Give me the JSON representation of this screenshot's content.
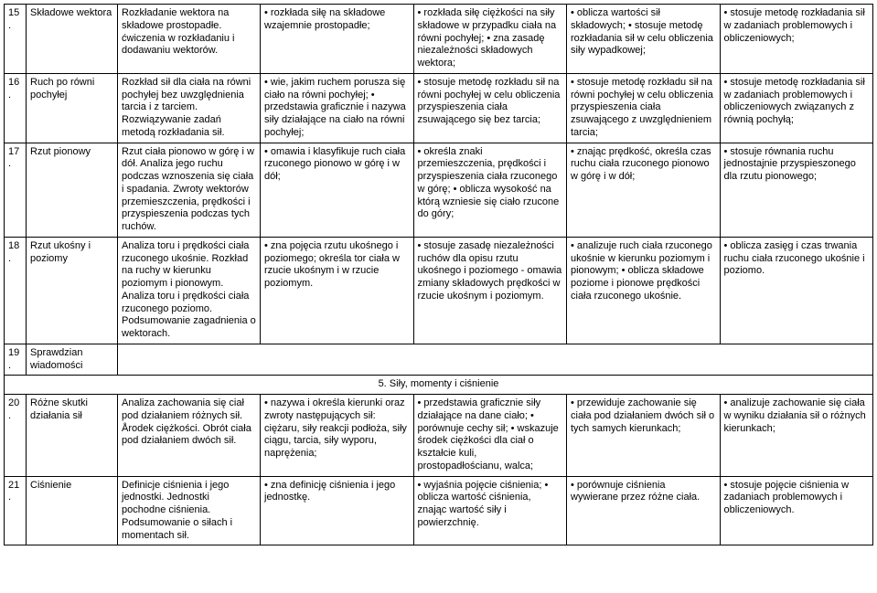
{
  "rows": [
    {
      "num": "15.",
      "topic": "Składowe wektora",
      "col3": "Rozkładanie wektora na składowe prostopadłe. ćwiczenia w rozkładaniu i dodawaniu wektorów.",
      "col4": "• rozkłada siłę na składowe wzajemnie prostopadłe;",
      "col5": "• rozkłada siłę ciężkości na siły składowe w przypadku ciała na równi pochyłej; • zna zasadę niezależności składowych wektora;",
      "col6": "• oblicza wartości sił składowych; • stosuje metodę rozkładania sił w celu obliczenia siły wypadkowej;",
      "col7": "• stosuje metodę rozkładania sił w zadaniach problemowych i obliczeniowych;"
    },
    {
      "num": "16.",
      "topic": "Ruch po równi pochyłej",
      "col3": "Rozkład sił dla ciała na równi pochyłej bez uwzględnienia tarcia i z tarciem. Rozwiązywanie zadań metodą rozkładania sił.",
      "col4": "• wie, jakim ruchem porusza się ciało na równi pochyłej; • przedstawia graficznie i nazywa siły działające na ciało na równi pochyłej;",
      "col5": "• stosuje metodę rozkładu sił na równi pochyłej w celu obliczenia przyspieszenia ciała zsuwającego się bez tarcia;",
      "col6": "• stosuje metodę rozkładu sił na równi pochyłej w celu obliczenia przyspieszenia ciała zsuwającego z uwzględnieniem tarcia;",
      "col7": "• stosuje metodę rozkładania sił w zadaniach problemowych i obliczeniowych związanych z równią pochyłą;"
    },
    {
      "num": "17.",
      "topic": "Rzut pionowy",
      "col3": "Rzut ciała pionowo w górę i w dół. Analiza jego ruchu podczas wznoszenia się ciała i spadania. Zwroty wektorów przemieszczenia, prędkości i przyspieszenia podczas tych ruchów.",
      "col4": "• omawia i klasyfikuje ruch ciała rzuconego pionowo w górę i w dół;",
      "col5": "• określa znaki przemieszczenia, prędkości i przyspieszenia ciała rzuconego w górę; • oblicza wysokość na którą wzniesie się ciało rzucone do góry;",
      "col6": "• znając prędkość, określa czas ruchu ciała rzuconego pionowo w górę i w dół;",
      "col7": "• stosuje równania ruchu jednostajnie przyspieszonego dla rzutu pionowego;"
    },
    {
      "num": "18.",
      "topic": "Rzut ukośny i poziomy",
      "col3": "Analiza toru i prędkości ciała rzuconego ukośnie. Rozkład na ruchy w kierunku poziomym i pionowym. Analiza toru i prędkości ciała rzuconego poziomo. Podsumowanie zagadnienia o wektorach.",
      "col4": "• zna pojęcia rzutu ukośnego i poziomego; określa tor ciała w rzucie ukośnym i w rzucie poziomym.",
      "col5": "• stosuje zasadę niezależności ruchów dla opisu rzutu ukośnego i poziomego - omawia zmiany składowych prędkości w rzucie ukośnym i poziomym.",
      "col6": "• analizuje ruch ciała rzuconego ukośnie w kierunku poziomym i pionowym; • oblicza składowe poziome i pionowe prędkości ciała rzuconego ukośnie.",
      "col7": "• oblicza zasięg i czas trwania ruchu ciała rzuconego ukośnie i poziomo."
    },
    {
      "num": "19.",
      "topic": "Sprawdzian wiadomości",
      "col3": "",
      "col4": "",
      "col5": "",
      "col6": "",
      "col7": ""
    }
  ],
  "section_title": "5. Siły, momenty i ciśnienie",
  "rows2": [
    {
      "num": "20.",
      "topic": "Różne skutki działania sił",
      "col3": "Analiza zachowania się ciał pod działaniem różnych sił. Årodek ciężkości. Obrót ciała pod działaniem dwóch sił.",
      "col4": "• nazywa i określa kierunki oraz zwroty następujących sił: ciężaru, siły reakcji podłoża, siły ciągu, tarcia, siły wyporu, naprężenia;",
      "col5": "• przedstawia graficznie siły działające na dane ciało; • porównuje cechy sił; • wskazuje środek ciężkości dla ciał o kształcie kuli, prostopadłościanu, walca;",
      "col6": "• przewiduje zachowanie się ciała pod działaniem dwóch sił o tych samych kierunkach;",
      "col7": "• analizuje zachowanie się ciała w wyniku działania sił o różnych kierunkach;"
    },
    {
      "num": "21.",
      "topic": "Ciśnienie",
      "col3": "Definicje ciśnienia i jego jednostki. Jednostki pochodne ciśnienia. Podsumowanie o siłach i momentach sił.",
      "col4": "• zna definicję ciśnienia i jego jednostkę.",
      "col5": "• wyjaśnia pojęcie ciśnienia; • oblicza wartość ciśnienia, znając wartość siły i powierzchnię.",
      "col6": "• porównuje ciśnienia wywierane przez różne ciała.",
      "col7": "• stosuje pojęcie ciśnienia w zadaniach problemowych i obliczeniowych."
    }
  ]
}
